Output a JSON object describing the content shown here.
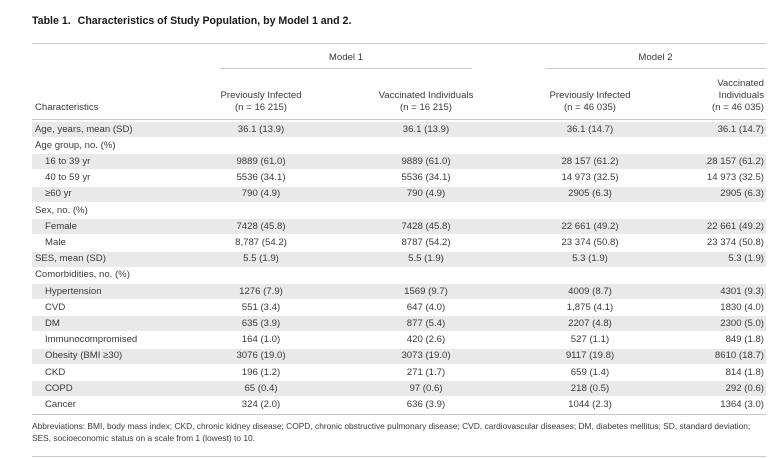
{
  "table": {
    "number": "Table 1.",
    "title": "Characteristics of Study Population, by Model 1 and 2.",
    "groups": [
      "Model 1",
      "Model 2"
    ],
    "headers": {
      "characteristics": "Characteristics",
      "col1": [
        "Previously Infected",
        "(n = 16 215)"
      ],
      "col2": [
        "Vaccinated Individuals",
        "(n = 16 215)"
      ],
      "col3": [
        "Previously Infected",
        "(n = 46 035)"
      ],
      "col4": [
        "Vaccinated",
        "Individuals",
        "(n = 46 035)"
      ]
    },
    "rows": [
      {
        "label": "Age, years, mean (SD)",
        "indent": 0,
        "shade": true,
        "v": [
          "36.1 (13.9)",
          "36.1 (13.9)",
          "36.1 (14.7)",
          "36.1 (14.7)"
        ]
      },
      {
        "label": "Age group, no. (%)",
        "indent": 0,
        "shade": false,
        "v": [
          "",
          "",
          "",
          ""
        ]
      },
      {
        "label": "16 to 39 yr",
        "indent": 1,
        "shade": true,
        "v": [
          "9889 (61.0)",
          "9889 (61.0)",
          "28 157 (61.2)",
          "28 157 (61.2)"
        ]
      },
      {
        "label": "40 to 59 yr",
        "indent": 1,
        "shade": false,
        "v": [
          "5536 (34.1)",
          "5536 (34.1)",
          "14 973 (32.5)",
          "14 973 (32.5)"
        ]
      },
      {
        "label": "≥60 yr",
        "indent": 1,
        "shade": true,
        "v": [
          "790 (4.9)",
          "790 (4.9)",
          "2905 (6.3)",
          "2905 (6.3)"
        ]
      },
      {
        "label": "Sex, no. (%)",
        "indent": 0,
        "shade": false,
        "v": [
          "",
          "",
          "",
          ""
        ]
      },
      {
        "label": "Female",
        "indent": 1,
        "shade": true,
        "v": [
          "7428 (45.8)",
          "7428 (45.8)",
          "22 661 (49.2)",
          "22 661 (49.2)"
        ]
      },
      {
        "label": "Male",
        "indent": 1,
        "shade": false,
        "v": [
          "8,787 (54.2)",
          "8787 (54.2)",
          "23 374 (50.8)",
          "23 374 (50.8)"
        ]
      },
      {
        "label": "SES, mean (SD)",
        "indent": 0,
        "shade": true,
        "v": [
          "5.5 (1.9)",
          "5.5 (1.9)",
          "5.3 (1.9)",
          "5.3 (1.9)"
        ]
      },
      {
        "label": "Comorbidities, no. (%)",
        "indent": 0,
        "shade": false,
        "v": [
          "",
          "",
          "",
          ""
        ]
      },
      {
        "label": "Hypertension",
        "indent": 1,
        "shade": true,
        "v": [
          "1276 (7.9)",
          "1569 (9.7)",
          "4009 (8.7)",
          "4301 (9.3)"
        ]
      },
      {
        "label": "CVD",
        "indent": 1,
        "shade": false,
        "v": [
          "551 (3.4)",
          "647 (4.0)",
          "1,875 (4.1)",
          "1830 (4.0)"
        ]
      },
      {
        "label": "DM",
        "indent": 1,
        "shade": true,
        "v": [
          "635 (3.9)",
          "877 (5.4)",
          "2207 (4.8)",
          "2300 (5.0)"
        ]
      },
      {
        "label": "Immunocompromised",
        "indent": 1,
        "shade": false,
        "v": [
          "164 (1.0)",
          "420 (2.6)",
          "527 (1.1)",
          "849 (1.8)"
        ]
      },
      {
        "label": "Obesity (BMI ≥30)",
        "indent": 1,
        "shade": true,
        "v": [
          "3076 (19.0)",
          "3073 (19.0)",
          "9117 (19.8)",
          "8610 (18.7)"
        ]
      },
      {
        "label": "CKD",
        "indent": 1,
        "shade": false,
        "v": [
          "196 (1.2)",
          "271 (1.7)",
          "659 (1.4)",
          "814 (1.8)"
        ]
      },
      {
        "label": "COPD",
        "indent": 1,
        "shade": true,
        "v": [
          "65 (0.4)",
          "97 (0.6)",
          "218 (0.5)",
          "292 (0.6)"
        ]
      },
      {
        "label": "Cancer",
        "indent": 1,
        "shade": false,
        "v": [
          "324 (2.0)",
          "636 (3.9)",
          "1044 (2.3)",
          "1364 (3.0)"
        ]
      }
    ],
    "footnote": "Abbreviations: BMI, body mass index; CKD, chronic kidney disease; COPD, chronic obstructive pulmonary disease; CVD, cardiovascular diseases; DM, diabetes mellitus; SD, standard deviation; SES, socioeconomic status on a scale from 1 (lowest) to 10."
  }
}
